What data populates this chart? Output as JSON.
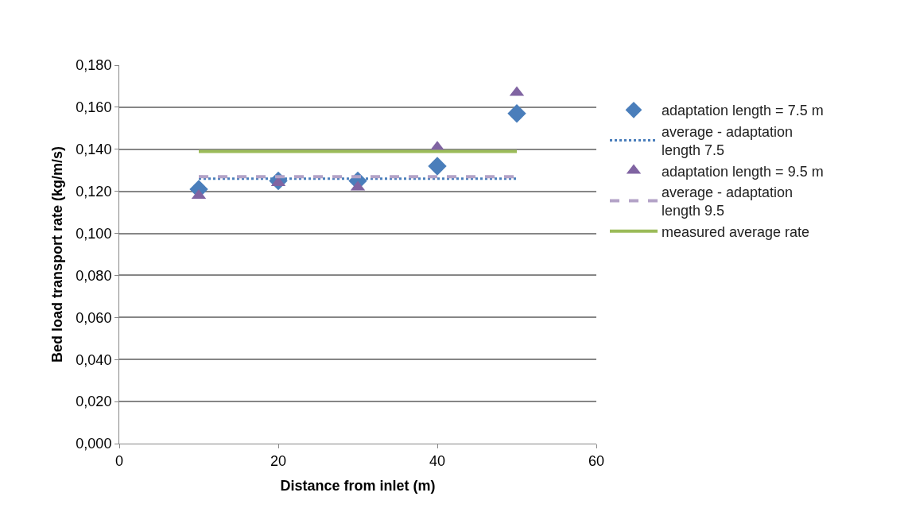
{
  "chart_data": {
    "type": "scatter",
    "xlabel": "Distance from inlet (m)",
    "ylabel": "Bed load transport rate (kg/m/s)",
    "series": [
      {
        "name": "adaptation length = 7.5 m",
        "color": "#4a7ebb",
        "marker": "diamond",
        "x": [
          10,
          20,
          30,
          40,
          50
        ],
        "values": [
          0.121,
          0.125,
          0.125,
          0.132,
          0.157
        ]
      },
      {
        "name": "average - adaptation length 7.5",
        "type": "line",
        "color": "#4a7ebb",
        "marker": "none",
        "line_style": "dotted",
        "x": [
          10,
          50
        ],
        "values": [
          0.126,
          0.126
        ]
      },
      {
        "name": "adaptation length = 9.5 m",
        "color": "#8064a2",
        "marker": "triangle",
        "x": [
          10,
          20,
          30,
          40,
          50
        ],
        "values": [
          0.118,
          0.124,
          0.122,
          0.141,
          0.167
        ]
      },
      {
        "name": "average - adaptation length 9.5",
        "type": "line",
        "color": "#b3a2c7",
        "marker": "none",
        "line_style": "dashed",
        "x": [
          10,
          50
        ],
        "values": [
          0.127,
          0.127
        ]
      },
      {
        "name": "measured average rate",
        "type": "line",
        "color": "#9bbb59",
        "marker": "none",
        "line_style": "solid",
        "x": [
          10,
          50
        ],
        "values": [
          0.139,
          0.139
        ]
      }
    ],
    "xlim": [
      0,
      60
    ],
    "xticks": [
      0,
      20,
      40,
      60
    ],
    "ylim": [
      0,
      0.18
    ],
    "yticks": [
      {
        "value": 0,
        "label": "0,000"
      },
      {
        "value": 0.02,
        "label": "0,020"
      },
      {
        "value": 0.04,
        "label": "0,040"
      },
      {
        "value": 0.06,
        "label": "0,060"
      },
      {
        "value": 0.08,
        "label": "0,080"
      },
      {
        "value": 0.1,
        "label": "0,100"
      },
      {
        "value": 0.12,
        "label": "0,120"
      },
      {
        "value": 0.14,
        "label": "0,140"
      },
      {
        "value": 0.16,
        "label": "0,160"
      },
      {
        "value": 0.18,
        "label": "0,180"
      }
    ],
    "grid": "y",
    "legend": "right"
  }
}
